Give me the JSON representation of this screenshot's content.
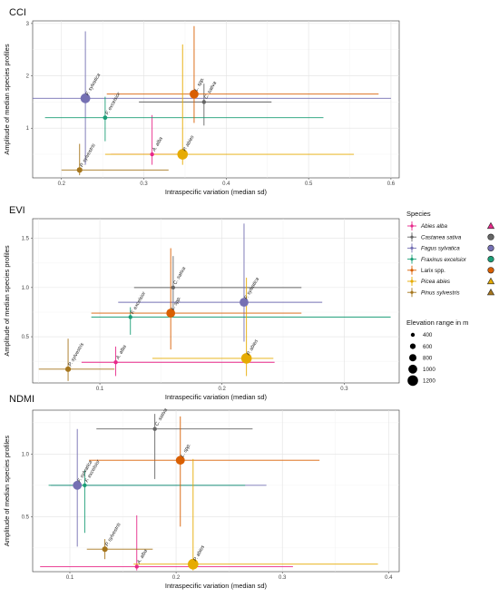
{
  "colors": {
    "Abies alba": "#e7298a",
    "Castanea sativa": "#666666",
    "Fagus sylvatica": "#7570b3",
    "Fraxinus excelsior": "#1b9e77",
    "Larix spp.": "#d95f02",
    "Picea abies": "#e6ab02",
    "Pinus sylvestris": "#a6761d"
  },
  "legend": {
    "species_title": "Species",
    "elevation_title": "Elevation range in m",
    "species": [
      {
        "name": "Abies alba",
        "italic": true,
        "shape": "triangle"
      },
      {
        "name": "Castanea sativa",
        "italic": true,
        "shape": "circle"
      },
      {
        "name": "Fagus sylvatica",
        "italic": true,
        "shape": "circle"
      },
      {
        "name": "Fraxinus excelsior",
        "italic": true,
        "shape": "circle"
      },
      {
        "name": "Larix spp.",
        "italic": false,
        "shape": "circle"
      },
      {
        "name": "Picea abies",
        "italic": true,
        "shape": "triangle"
      },
      {
        "name": "Pinus sylvestris",
        "italic": true,
        "shape": "triangle"
      }
    ],
    "elevation_sizes": [
      400,
      600,
      800,
      1000,
      1200
    ]
  },
  "chart_data": [
    {
      "type": "scatter",
      "title": "CCI",
      "xlabel": "Intraspecific variation (median sd)",
      "ylabel": "Amplitude of median species profiles",
      "xlim": [
        0.165,
        0.61
      ],
      "ylim": [
        0.05,
        3.05
      ],
      "xticks": [
        0.2,
        0.3,
        0.4,
        0.5,
        0.6
      ],
      "xtick_labels": [
        "0.2",
        "0.3",
        "0.4",
        "0.5",
        "0.6"
      ],
      "yticks": [
        1,
        2,
        3
      ],
      "ytick_labels": [
        "1",
        "2",
        "3"
      ],
      "points": [
        {
          "species": "Abies alba",
          "label": "A. alba",
          "x": 0.31,
          "y": 0.5,
          "xerr": [
            0.26,
            0.345
          ],
          "yerr": [
            0.3,
            1.25
          ],
          "elevation": 400
        },
        {
          "species": "Castanea sativa",
          "label": "C. sativa",
          "x": 0.373,
          "y": 1.5,
          "xerr": [
            0.294,
            0.455
          ],
          "yerr": [
            1.05,
            1.85
          ],
          "elevation": 400
        },
        {
          "species": "Fagus sylvatica",
          "label": "F. sylvatica",
          "x": 0.229,
          "y": 1.57,
          "xerr": [
            0.165,
            0.6
          ],
          "yerr": [
            0.3,
            2.85
          ],
          "elevation": 1100
        },
        {
          "species": "Fraxinus excelsior",
          "label": "F. excelsior",
          "x": 0.253,
          "y": 1.2,
          "xerr": [
            0.18,
            0.518
          ],
          "yerr": [
            0.75,
            1.6
          ],
          "elevation": 450
        },
        {
          "species": "Larix spp.",
          "label": "L. spp.",
          "x": 0.361,
          "y": 1.65,
          "xerr": [
            0.255,
            0.585
          ],
          "yerr": [
            1.1,
            2.95
          ],
          "elevation": 1000
        },
        {
          "species": "Picea abies",
          "label": "P. abies",
          "x": 0.347,
          "y": 0.5,
          "xerr": [
            0.253,
            0.555
          ],
          "yerr": [
            0.3,
            2.6
          ],
          "elevation": 1200
        },
        {
          "species": "Pinus sylvestris",
          "label": "P. sylvestris",
          "x": 0.222,
          "y": 0.2,
          "xerr": [
            0.2,
            0.33
          ],
          "yerr": [
            0.1,
            0.7
          ],
          "elevation": 600
        }
      ]
    },
    {
      "type": "scatter",
      "title": "EVI",
      "xlabel": "Intraspecific variation (median sd)",
      "ylabel": "Amplitude of median species profiles",
      "xlim": [
        0.045,
        0.345
      ],
      "ylim": [
        0.03,
        1.7
      ],
      "xticks": [
        0.1,
        0.2,
        0.3
      ],
      "xtick_labels": [
        "0.1",
        "0.2",
        "0.3"
      ],
      "yticks": [
        0.5,
        1.0,
        1.5
      ],
      "ytick_labels": [
        "0.5",
        "1.0",
        "1.5"
      ],
      "points": [
        {
          "species": "Abies alba",
          "label": "A. alba",
          "x": 0.113,
          "y": 0.24,
          "xerr": [
            0.085,
            0.243
          ],
          "yerr": [
            0.1,
            0.4
          ],
          "elevation": 400
        },
        {
          "species": "Castanea sativa",
          "label": "C. sativa",
          "x": 0.16,
          "y": 1.0,
          "xerr": [
            0.128,
            0.265
          ],
          "yerr": [
            0.7,
            1.32
          ],
          "elevation": 400
        },
        {
          "species": "Fagus sylvatica",
          "label": "F. sylvatica",
          "x": 0.218,
          "y": 0.85,
          "xerr": [
            0.115,
            0.282
          ],
          "yerr": [
            0.45,
            1.65
          ],
          "elevation": 1000
        },
        {
          "species": "Fraxinus excelsior",
          "label": "F. excelsior",
          "x": 0.125,
          "y": 0.7,
          "xerr": [
            0.093,
            0.338
          ],
          "yerr": [
            0.52,
            0.8
          ],
          "elevation": 400
        },
        {
          "species": "Larix spp.",
          "label": "L. spp.",
          "x": 0.158,
          "y": 0.74,
          "xerr": [
            0.093,
            0.265
          ],
          "yerr": [
            0.37,
            1.4
          ],
          "elevation": 1000
        },
        {
          "species": "Picea abies",
          "label": "P. abies",
          "x": 0.22,
          "y": 0.28,
          "xerr": [
            0.143,
            0.242
          ],
          "yerr": [
            0.1,
            1.1
          ],
          "elevation": 1200
        },
        {
          "species": "Pinus sylvestris",
          "label": "P. sylvestris",
          "x": 0.074,
          "y": 0.17,
          "xerr": [
            0.05,
            0.112
          ],
          "yerr": [
            0.05,
            0.48
          ],
          "elevation": 600
        }
      ]
    },
    {
      "type": "scatter",
      "title": "NDMI",
      "xlabel": "Intraspecific variation (median sd)",
      "ylabel": "Amplitude of median species profiles",
      "xlim": [
        0.065,
        0.41
      ],
      "ylim": [
        0.06,
        1.35
      ],
      "xticks": [
        0.1,
        0.2,
        0.3,
        0.4
      ],
      "xtick_labels": [
        "0.1",
        "0.2",
        "0.3",
        "0.4"
      ],
      "yticks": [
        0.5,
        1.0
      ],
      "ytick_labels": [
        "0.5",
        "1.0"
      ],
      "points": [
        {
          "species": "Abies alba",
          "label": "A. alba",
          "x": 0.163,
          "y": 0.1,
          "xerr": [
            0.072,
            0.31
          ],
          "yerr": [
            0.07,
            0.51
          ],
          "elevation": 400
        },
        {
          "species": "Castanea sativa",
          "label": "C. sativa",
          "x": 0.18,
          "y": 1.2,
          "xerr": [
            0.125,
            0.272
          ],
          "yerr": [
            0.8,
            1.32
          ],
          "elevation": 400
        },
        {
          "species": "Fagus sylvatica",
          "label": "F. sylvatica",
          "x": 0.107,
          "y": 0.75,
          "xerr": [
            0.082,
            0.285
          ],
          "yerr": [
            0.26,
            1.2
          ],
          "elevation": 1000
        },
        {
          "species": "Fraxinus excelsior",
          "label": "F. excelsior",
          "x": 0.114,
          "y": 0.75,
          "xerr": [
            0.08,
            0.265
          ],
          "yerr": [
            0.37,
            0.87
          ],
          "elevation": 400
        },
        {
          "species": "Larix spp.",
          "label": "L. spp.",
          "x": 0.204,
          "y": 0.95,
          "xerr": [
            0.118,
            0.335
          ],
          "yerr": [
            0.42,
            1.3
          ],
          "elevation": 1000
        },
        {
          "species": "Picea abies",
          "label": "P. abies",
          "x": 0.216,
          "y": 0.12,
          "xerr": [
            0.16,
            0.39
          ],
          "yerr": [
            0.07,
            0.96
          ],
          "elevation": 1200
        },
        {
          "species": "Pinus sylvestris",
          "label": "P. sylvestris",
          "x": 0.133,
          "y": 0.24,
          "xerr": [
            0.116,
            0.178
          ],
          "yerr": [
            0.16,
            0.32
          ],
          "elevation": 600
        }
      ]
    }
  ]
}
